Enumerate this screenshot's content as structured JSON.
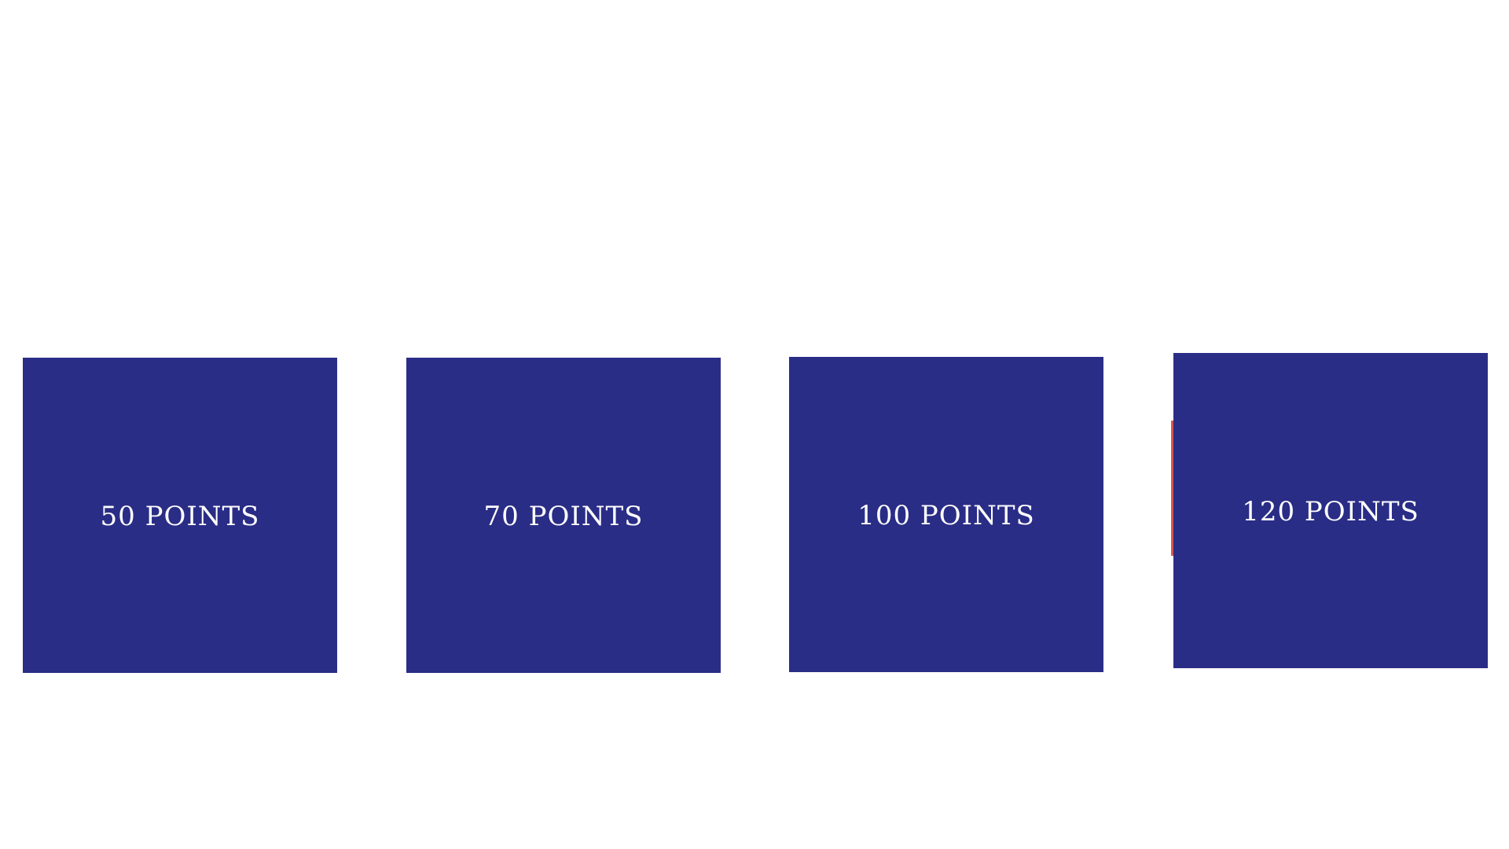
{
  "colors": {
    "background": "#ffffff",
    "tile": "#2a2d86",
    "tile_text": "#ffffff",
    "accent": "#d9544f"
  },
  "tiles": [
    {
      "label": "50 POINTS"
    },
    {
      "label": "70 POINTS"
    },
    {
      "label": "100 POINTS"
    },
    {
      "label": "120 POINTS"
    }
  ]
}
